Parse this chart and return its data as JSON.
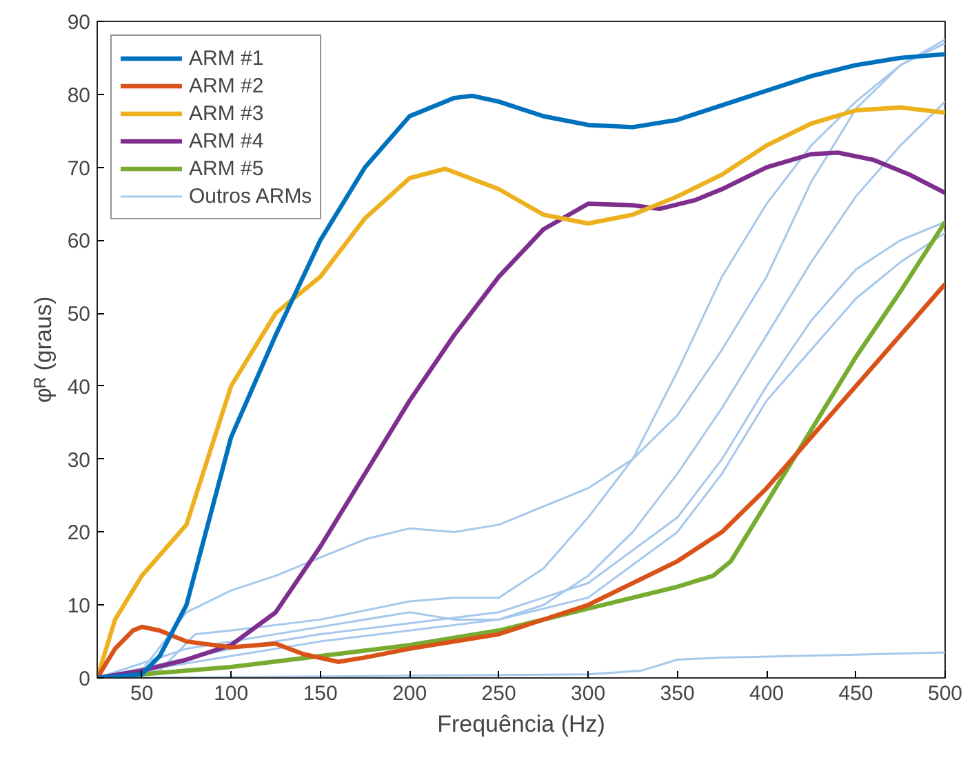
{
  "chart_data": {
    "type": "line",
    "xlabel": "Frequência (Hz)",
    "ylabel": "φᴿ (graus)",
    "xlim": [
      25,
      500
    ],
    "ylim": [
      0,
      90
    ],
    "xticks": [
      50,
      100,
      150,
      200,
      250,
      300,
      350,
      400,
      450,
      500
    ],
    "yticks": [
      0,
      10,
      20,
      30,
      40,
      50,
      60,
      70,
      80,
      90
    ],
    "grid": false,
    "legend": "top left",
    "marker": "none",
    "line_style": "solid",
    "series": [
      {
        "name": "ARM #1",
        "color": "#0072bd",
        "x": [
          25,
          50,
          60,
          75,
          100,
          125,
          150,
          175,
          200,
          225,
          235,
          250,
          275,
          300,
          325,
          350,
          375,
          400,
          425,
          450,
          475,
          500
        ],
        "values": [
          0,
          0.5,
          3,
          10,
          33,
          47,
          60,
          70,
          77,
          79.5,
          79.8,
          79,
          77,
          75.8,
          75.5,
          76.5,
          78.5,
          80.5,
          82.5,
          84,
          85,
          85.5
        ]
      },
      {
        "name": "ARM #2",
        "color": "#d95319",
        "x": [
          25,
          35,
          45,
          50,
          60,
          75,
          100,
          125,
          140,
          160,
          175,
          200,
          250,
          300,
          350,
          375,
          400,
          425,
          450,
          475,
          500
        ],
        "values": [
          0,
          4,
          6.5,
          7,
          6.5,
          5,
          4.2,
          4.7,
          3.3,
          2.2,
          2.8,
          4,
          6,
          10,
          16,
          20,
          26,
          33,
          40,
          47,
          54
        ]
      },
      {
        "name": "ARM #3",
        "color": "#edb120",
        "x": [
          25,
          35,
          50,
          75,
          100,
          125,
          150,
          175,
          200,
          220,
          250,
          275,
          300,
          325,
          350,
          375,
          400,
          425,
          450,
          475,
          500
        ],
        "values": [
          0,
          8,
          14,
          21,
          40,
          50,
          55,
          63,
          68.5,
          69.8,
          67,
          63.5,
          62.3,
          63.5,
          66,
          69,
          73,
          76,
          77.8,
          78.2,
          77.5
        ]
      },
      {
        "name": "ARM #4",
        "color": "#7e2f8e",
        "x": [
          25,
          50,
          75,
          100,
          125,
          150,
          175,
          200,
          225,
          250,
          275,
          300,
          325,
          340,
          360,
          375,
          400,
          425,
          440,
          460,
          480,
          500
        ],
        "values": [
          0,
          1,
          2.5,
          4.5,
          9,
          18,
          28,
          38,
          47,
          55,
          61.5,
          65,
          64.8,
          64.3,
          65.5,
          67,
          70,
          71.8,
          72,
          71,
          69,
          66.5
        ]
      },
      {
        "name": "ARM #5",
        "color": "#77ac30",
        "x": [
          25,
          50,
          100,
          150,
          200,
          250,
          300,
          350,
          370,
          380,
          400,
          425,
          450,
          475,
          500
        ],
        "values": [
          0,
          0.5,
          1.5,
          3,
          4.5,
          6.5,
          9.5,
          12.5,
          14,
          16,
          24,
          34,
          44,
          53,
          62.5
        ]
      },
      {
        "name": "Outros ARMs",
        "color": "#a6c8ec",
        "x": [
          25,
          200,
          300,
          330,
          350,
          375,
          450,
          500
        ],
        "values": [
          0,
          0.3,
          0.5,
          1,
          2.5,
          2.8,
          3.2,
          3.5
        ]
      },
      {
        "color": "#a6c8ec",
        "x": [
          25,
          50,
          75,
          100,
          125,
          150,
          175,
          200,
          225,
          250,
          275,
          300,
          325,
          350,
          375,
          400,
          425,
          450,
          475,
          500
        ],
        "values": [
          0,
          1,
          9,
          12,
          14,
          16.5,
          19,
          20.5,
          20,
          21,
          23.5,
          26,
          30,
          36,
          45,
          55,
          68,
          78,
          84,
          87
        ]
      },
      {
        "color": "#a6c8ec",
        "x": [
          25,
          60,
          80,
          100,
          150,
          200,
          225,
          250,
          275,
          300,
          325,
          350,
          375,
          400,
          425,
          450,
          475,
          500
        ],
        "values": [
          0,
          1,
          6,
          6.5,
          8,
          10.5,
          11,
          11,
          15,
          22,
          30,
          42,
          55,
          65,
          73,
          79,
          84,
          87.5
        ]
      },
      {
        "color": "#a6c8ec",
        "x": [
          25,
          75,
          100,
          150,
          200,
          225,
          250,
          275,
          300,
          325,
          350,
          375,
          400,
          425,
          450,
          475,
          500
        ],
        "values": [
          0,
          4,
          5,
          7,
          9,
          8,
          8,
          10,
          14,
          20,
          28,
          37,
          47,
          57,
          66,
          73,
          79
        ]
      },
      {
        "color": "#a6c8ec",
        "x": [
          25,
          100,
          150,
          200,
          250,
          300,
          350,
          375,
          400,
          425,
          450,
          475,
          500
        ],
        "values": [
          0,
          4,
          6,
          7.5,
          9,
          13,
          22,
          30,
          40,
          49,
          56,
          60,
          62.5
        ]
      },
      {
        "color": "#a6c8ec",
        "x": [
          25,
          100,
          150,
          200,
          250,
          300,
          350,
          375,
          400,
          425,
          450,
          475,
          500
        ],
        "values": [
          0,
          3,
          5,
          6.5,
          8,
          11,
          20,
          28,
          38,
          45,
          52,
          57,
          61
        ]
      }
    ]
  }
}
